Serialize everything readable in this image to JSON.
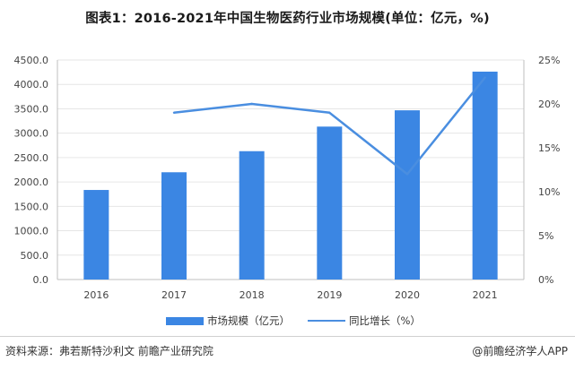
{
  "title": "图表1：2016-2021年中国生物医药行业市场规模(单位：亿元，%)",
  "colors": {
    "bar": "#3b86e3",
    "line": "#4a8ee0",
    "grid": "#e6e6e6",
    "axis": "#bfbfbf",
    "text": "#444444"
  },
  "chart_data": {
    "type": "bar",
    "categories": [
      "2016",
      "2017",
      "2018",
      "2019",
      "2020",
      "2021"
    ],
    "series": [
      {
        "name": "市场规模（亿元）",
        "type": "bar",
        "axis": "left",
        "values": [
          1836,
          2199,
          2631,
          3135,
          3469,
          4262
        ]
      },
      {
        "name": "同比增长（%）",
        "type": "line",
        "axis": "right",
        "values": [
          null,
          19.0,
          20.0,
          19.0,
          12.0,
          23.0
        ]
      }
    ],
    "y_left": {
      "ylim": [
        0,
        4500
      ],
      "ticks": [
        "0.0",
        "500.0",
        "1000.0",
        "1500.0",
        "2000.0",
        "2500.0",
        "3000.0",
        "3500.0",
        "4000.0",
        "4500.0"
      ]
    },
    "y_right": {
      "ylim": [
        0,
        25
      ],
      "ticks": [
        "0%",
        "5%",
        "10%",
        "15%",
        "20%",
        "25%"
      ]
    },
    "grid": true,
    "legend": "bottom"
  },
  "footer": {
    "source": "资料来源：弗若斯特沙利文 前瞻产业研究院",
    "brand": "@前瞻经济学人APP"
  }
}
